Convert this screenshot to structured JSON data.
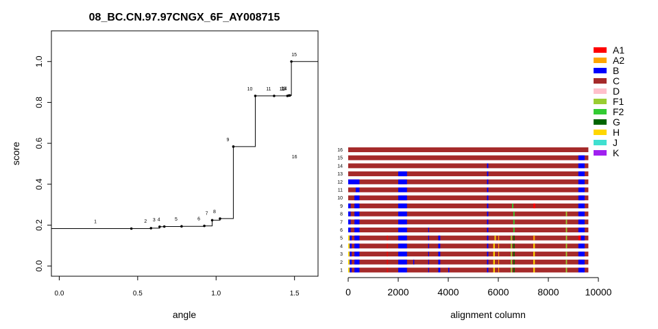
{
  "chart_data": [
    {
      "type": "line",
      "title": "08_BC.CN.97.97CNGX_6F_AY008715",
      "xlabel": "angle",
      "ylabel": "score",
      "xlim": [
        -0.05,
        1.65
      ],
      "ylim": [
        -0.05,
        1.15
      ],
      "x_ticks": [
        0.0,
        0.5,
        1.0,
        1.5
      ],
      "x_tick_labels": [
        "0.0",
        "0.5",
        "1.0",
        "1.5"
      ],
      "y_ticks": [
        0.0,
        0.2,
        0.4,
        0.6,
        0.8,
        1.0
      ],
      "y_tick_labels": [
        "0.0",
        "0.2",
        "0.4",
        "0.6",
        "0.8",
        "1.0"
      ],
      "grid": false,
      "step_points": [
        {
          "label": "1",
          "x": 0.46,
          "y": 0.183
        },
        {
          "label": "2",
          "x": 0.585,
          "y": 0.185
        },
        {
          "label": "3",
          "x": 0.64,
          "y": 0.192
        },
        {
          "label": "4",
          "x": 0.67,
          "y": 0.193
        },
        {
          "label": "5",
          "x": 0.78,
          "y": 0.194
        },
        {
          "label": "6",
          "x": 0.925,
          "y": 0.196
        },
        {
          "label": "7",
          "x": 0.975,
          "y": 0.224
        },
        {
          "label": "8",
          "x": 1.025,
          "y": 0.232
        },
        {
          "label": "9",
          "x": 1.11,
          "y": 0.584
        },
        {
          "label": "10",
          "x": 1.25,
          "y": 0.832
        },
        {
          "label": "11",
          "x": 1.37,
          "y": 0.832
        },
        {
          "label": "12",
          "x": 1.455,
          "y": 0.832
        },
        {
          "label": "13",
          "x": 1.465,
          "y": 0.834
        },
        {
          "label": "14",
          "x": 1.47,
          "y": 0.834
        },
        {
          "label": "15",
          "x": 1.48,
          "y": 1.0
        },
        {
          "label": "16",
          "x": 1.65,
          "y": 0.5
        }
      ]
    },
    {
      "type": "bar",
      "xlabel": "alignment column",
      "xlim": [
        0,
        10000
      ],
      "x_ticks": [
        0,
        2000,
        4000,
        6000,
        8000,
        10000
      ],
      "x_tick_labels": [
        "0",
        "2000",
        "4000",
        "6000",
        "8000",
        "10000"
      ],
      "alignment_length": 9600,
      "rows": [
        {
          "label": "16",
          "segments": []
        },
        {
          "label": "15",
          "segments": [
            {
              "s": 9200,
              "e": 9450,
              "c": "#0000ff"
            }
          ]
        },
        {
          "label": "14",
          "segments": [
            {
              "s": 5550,
              "e": 5600,
              "c": "#0000ff"
            },
            {
              "s": 9200,
              "e": 9450,
              "c": "#0000ff"
            }
          ]
        },
        {
          "label": "13",
          "segments": [
            {
              "s": 2000,
              "e": 2350,
              "c": "#0000ff"
            },
            {
              "s": 5550,
              "e": 5600,
              "c": "#0000ff"
            },
            {
              "s": 9200,
              "e": 9450,
              "c": "#0000ff"
            }
          ]
        },
        {
          "label": "12",
          "segments": [
            {
              "s": 0,
              "e": 450,
              "c": "#0000ff"
            },
            {
              "s": 2000,
              "e": 2350,
              "c": "#0000ff"
            },
            {
              "s": 5550,
              "e": 5600,
              "c": "#0000ff"
            },
            {
              "s": 9200,
              "e": 9450,
              "c": "#0000ff"
            }
          ]
        },
        {
          "label": "11",
          "segments": [
            {
              "s": 300,
              "e": 450,
              "c": "#0000ff"
            },
            {
              "s": 2000,
              "e": 2350,
              "c": "#0000ff"
            },
            {
              "s": 5550,
              "e": 5600,
              "c": "#0000ff"
            },
            {
              "s": 9200,
              "e": 9450,
              "c": "#0000ff"
            }
          ]
        },
        {
          "label": "10",
          "segments": [
            {
              "s": 250,
              "e": 450,
              "c": "#0000ff"
            },
            {
              "s": 2000,
              "e": 2350,
              "c": "#0000ff"
            },
            {
              "s": 5550,
              "e": 5600,
              "c": "#0000ff"
            },
            {
              "s": 9200,
              "e": 9450,
              "c": "#0000ff"
            }
          ]
        },
        {
          "label": "9",
          "segments": [
            {
              "s": 0,
              "e": 100,
              "c": "#0000ff"
            },
            {
              "s": 250,
              "e": 450,
              "c": "#0000ff"
            },
            {
              "s": 2000,
              "e": 2350,
              "c": "#0000ff"
            },
            {
              "s": 5550,
              "e": 5600,
              "c": "#0000ff"
            },
            {
              "s": 6550,
              "e": 6600,
              "c": "#33cc33"
            },
            {
              "s": 7400,
              "e": 7480,
              "c": "#ff0000"
            },
            {
              "s": 9200,
              "e": 9450,
              "c": "#0000ff"
            }
          ]
        },
        {
          "label": "8",
          "segments": [
            {
              "s": 0,
              "e": 100,
              "c": "#0000ff"
            },
            {
              "s": 250,
              "e": 450,
              "c": "#0000ff"
            },
            {
              "s": 2000,
              "e": 2350,
              "c": "#0000ff"
            },
            {
              "s": 5550,
              "e": 5600,
              "c": "#0000ff"
            },
            {
              "s": 6600,
              "e": 6650,
              "c": "#33cc33"
            },
            {
              "s": 8700,
              "e": 8750,
              "c": "#9acd32"
            },
            {
              "s": 9200,
              "e": 9450,
              "c": "#0000ff"
            }
          ]
        },
        {
          "label": "7",
          "segments": [
            {
              "s": 0,
              "e": 100,
              "c": "#0000ff"
            },
            {
              "s": 250,
              "e": 450,
              "c": "#0000ff"
            },
            {
              "s": 2000,
              "e": 2350,
              "c": "#0000ff"
            },
            {
              "s": 5550,
              "e": 5600,
              "c": "#0000ff"
            },
            {
              "s": 6600,
              "e": 6650,
              "c": "#33cc33"
            },
            {
              "s": 8700,
              "e": 8750,
              "c": "#9acd32"
            },
            {
              "s": 9200,
              "e": 9450,
              "c": "#0000ff"
            }
          ]
        },
        {
          "label": "6",
          "segments": [
            {
              "s": 0,
              "e": 100,
              "c": "#0000ff"
            },
            {
              "s": 250,
              "e": 450,
              "c": "#0000ff"
            },
            {
              "s": 2000,
              "e": 2350,
              "c": "#0000ff"
            },
            {
              "s": 3200,
              "e": 3230,
              "c": "#0000ff"
            },
            {
              "s": 5550,
              "e": 5600,
              "c": "#0000ff"
            },
            {
              "s": 6600,
              "e": 6650,
              "c": "#33cc33"
            },
            {
              "s": 8700,
              "e": 8750,
              "c": "#9acd32"
            },
            {
              "s": 9200,
              "e": 9450,
              "c": "#0000ff"
            }
          ]
        },
        {
          "label": "5",
          "segments": [
            {
              "s": 0,
              "e": 60,
              "c": "#ffd700"
            },
            {
              "s": 60,
              "e": 140,
              "c": "#0000ff"
            },
            {
              "s": 250,
              "e": 450,
              "c": "#0000ff"
            },
            {
              "s": 1550,
              "e": 1580,
              "c": "#ff0000"
            },
            {
              "s": 2000,
              "e": 2350,
              "c": "#0000ff"
            },
            {
              "s": 3200,
              "e": 3230,
              "c": "#0000ff"
            },
            {
              "s": 3600,
              "e": 3680,
              "c": "#0000ff"
            },
            {
              "s": 5550,
              "e": 5600,
              "c": "#0000ff"
            },
            {
              "s": 5850,
              "e": 5900,
              "c": "#ffd700"
            },
            {
              "s": 6000,
              "e": 6030,
              "c": "#ffa500"
            },
            {
              "s": 6500,
              "e": 6550,
              "c": "#9acd32"
            },
            {
              "s": 6600,
              "e": 6650,
              "c": "#006400"
            },
            {
              "s": 7400,
              "e": 7460,
              "c": "#ffa500"
            },
            {
              "s": 8700,
              "e": 8750,
              "c": "#9acd32"
            },
            {
              "s": 9200,
              "e": 9300,
              "c": "#ff0000"
            },
            {
              "s": 9300,
              "e": 9450,
              "c": "#0000ff"
            }
          ]
        },
        {
          "label": "4",
          "segments": [
            {
              "s": 0,
              "e": 60,
              "c": "#ffd700"
            },
            {
              "s": 60,
              "e": 140,
              "c": "#0000ff"
            },
            {
              "s": 250,
              "e": 450,
              "c": "#0000ff"
            },
            {
              "s": 1550,
              "e": 1580,
              "c": "#ff0000"
            },
            {
              "s": 2000,
              "e": 2350,
              "c": "#0000ff"
            },
            {
              "s": 3200,
              "e": 3230,
              "c": "#0000ff"
            },
            {
              "s": 3600,
              "e": 3680,
              "c": "#0000ff"
            },
            {
              "s": 5550,
              "e": 5600,
              "c": "#0000ff"
            },
            {
              "s": 5800,
              "e": 5860,
              "c": "#ffd700"
            },
            {
              "s": 6000,
              "e": 6030,
              "c": "#ffa500"
            },
            {
              "s": 6500,
              "e": 6550,
              "c": "#9acd32"
            },
            {
              "s": 6600,
              "e": 6650,
              "c": "#006400"
            },
            {
              "s": 7400,
              "e": 7460,
              "c": "#ffd700"
            },
            {
              "s": 8700,
              "e": 8750,
              "c": "#9acd32"
            },
            {
              "s": 9200,
              "e": 9450,
              "c": "#0000ff"
            }
          ]
        },
        {
          "label": "3",
          "segments": [
            {
              "s": 0,
              "e": 60,
              "c": "#ffd700"
            },
            {
              "s": 60,
              "e": 140,
              "c": "#0000ff"
            },
            {
              "s": 250,
              "e": 450,
              "c": "#0000ff"
            },
            {
              "s": 1550,
              "e": 1580,
              "c": "#ff0000"
            },
            {
              "s": 2000,
              "e": 2350,
              "c": "#0000ff"
            },
            {
              "s": 3200,
              "e": 3230,
              "c": "#0000ff"
            },
            {
              "s": 3600,
              "e": 3680,
              "c": "#0000ff"
            },
            {
              "s": 5550,
              "e": 5600,
              "c": "#0000ff"
            },
            {
              "s": 5800,
              "e": 5860,
              "c": "#ffd700"
            },
            {
              "s": 6000,
              "e": 6030,
              "c": "#ffa500"
            },
            {
              "s": 6500,
              "e": 6550,
              "c": "#9acd32"
            },
            {
              "s": 6600,
              "e": 6650,
              "c": "#006400"
            },
            {
              "s": 7400,
              "e": 7460,
              "c": "#ffd700"
            },
            {
              "s": 8700,
              "e": 8750,
              "c": "#9acd32"
            },
            {
              "s": 9200,
              "e": 9450,
              "c": "#0000ff"
            }
          ]
        },
        {
          "label": "2",
          "segments": [
            {
              "s": 0,
              "e": 60,
              "c": "#ffd700"
            },
            {
              "s": 60,
              "e": 140,
              "c": "#0000ff"
            },
            {
              "s": 250,
              "e": 450,
              "c": "#0000ff"
            },
            {
              "s": 1550,
              "e": 1580,
              "c": "#ff0000"
            },
            {
              "s": 2000,
              "e": 2350,
              "c": "#0000ff"
            },
            {
              "s": 2600,
              "e": 2640,
              "c": "#0000ff"
            },
            {
              "s": 3200,
              "e": 3230,
              "c": "#0000ff"
            },
            {
              "s": 3600,
              "e": 3680,
              "c": "#0000ff"
            },
            {
              "s": 5550,
              "e": 5600,
              "c": "#0000ff"
            },
            {
              "s": 5800,
              "e": 5860,
              "c": "#ffd700"
            },
            {
              "s": 6000,
              "e": 6030,
              "c": "#ffa500"
            },
            {
              "s": 6500,
              "e": 6550,
              "c": "#9acd32"
            },
            {
              "s": 6600,
              "e": 6650,
              "c": "#006400"
            },
            {
              "s": 7400,
              "e": 7460,
              "c": "#ffd700"
            },
            {
              "s": 8700,
              "e": 8750,
              "c": "#9acd32"
            },
            {
              "s": 9200,
              "e": 9450,
              "c": "#0000ff"
            }
          ]
        },
        {
          "label": "1",
          "segments": [
            {
              "s": 0,
              "e": 60,
              "c": "#ffd700"
            },
            {
              "s": 60,
              "e": 140,
              "c": "#0000ff"
            },
            {
              "s": 250,
              "e": 450,
              "c": "#0000ff"
            },
            {
              "s": 1550,
              "e": 1580,
              "c": "#ff0000"
            },
            {
              "s": 2000,
              "e": 2350,
              "c": "#0000ff"
            },
            {
              "s": 3200,
              "e": 3230,
              "c": "#0000ff"
            },
            {
              "s": 3600,
              "e": 3680,
              "c": "#0000ff"
            },
            {
              "s": 4000,
              "e": 4040,
              "c": "#0000ff"
            },
            {
              "s": 5550,
              "e": 5600,
              "c": "#0000ff"
            },
            {
              "s": 5800,
              "e": 5860,
              "c": "#ffd700"
            },
            {
              "s": 6000,
              "e": 6030,
              "c": "#ffa500"
            },
            {
              "s": 6500,
              "e": 6550,
              "c": "#9acd32"
            },
            {
              "s": 6600,
              "e": 6650,
              "c": "#006400"
            },
            {
              "s": 7400,
              "e": 7460,
              "c": "#ffd700"
            },
            {
              "s": 8700,
              "e": 8750,
              "c": "#9acd32"
            },
            {
              "s": 9200,
              "e": 9450,
              "c": "#0000ff"
            }
          ]
        }
      ],
      "base_color": "#a52a2a",
      "legend": {
        "position": "right",
        "entries": [
          {
            "name": "A1",
            "color": "#ff0000"
          },
          {
            "name": "A2",
            "color": "#ffa500"
          },
          {
            "name": "B",
            "color": "#0000ff"
          },
          {
            "name": "C",
            "color": "#a52a2a"
          },
          {
            "name": "D",
            "color": "#ffc0cb"
          },
          {
            "name": "F1",
            "color": "#9acd32"
          },
          {
            "name": "F2",
            "color": "#33cc33"
          },
          {
            "name": "G",
            "color": "#006400"
          },
          {
            "name": "H",
            "color": "#ffd700"
          },
          {
            "name": "J",
            "color": "#40e0d0"
          },
          {
            "name": "K",
            "color": "#a020f0"
          }
        ]
      }
    }
  ]
}
